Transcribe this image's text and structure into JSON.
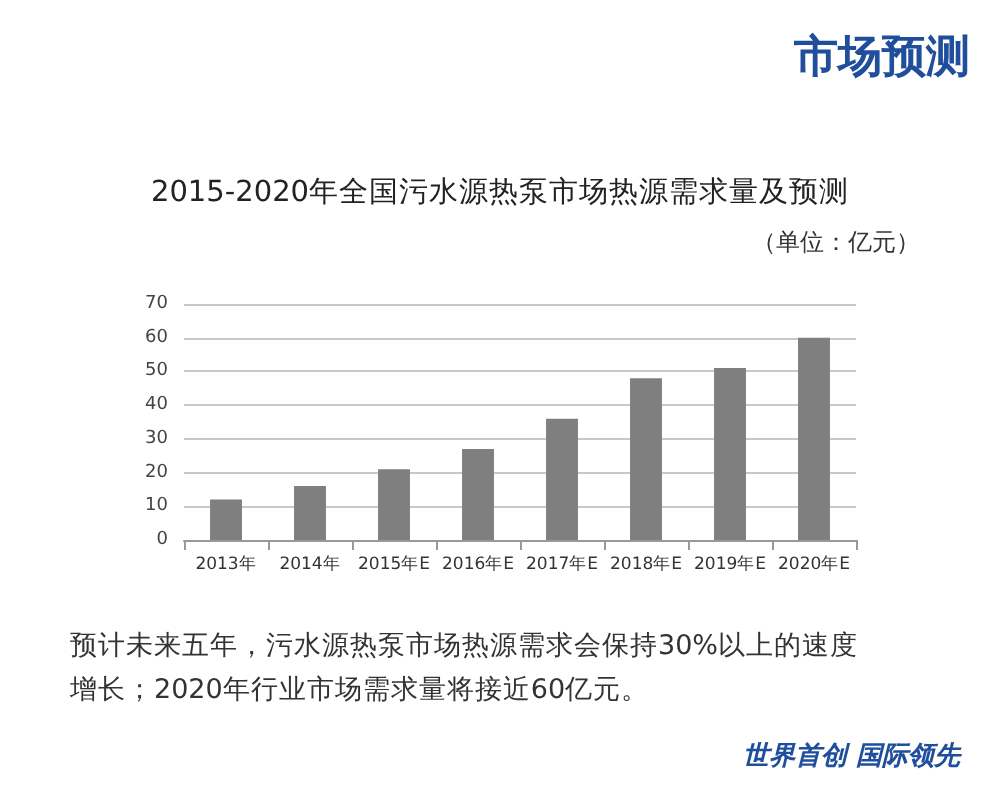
{
  "chart_data": {
    "type": "bar",
    "title": "2015-2020年全国污水源热泵市场热源需求量及预测",
    "categories": [
      "2013年",
      "2014年",
      "2015年E",
      "2016年E",
      "2017年E",
      "2018年E",
      "2019年E",
      "2020年E"
    ],
    "values": [
      12,
      16,
      21,
      27,
      36,
      48,
      51,
      60
    ],
    "color": "#7f7f7f",
    "ylim": [
      0,
      70
    ],
    "yticks": [
      0,
      10,
      20,
      30,
      40,
      50,
      60,
      70
    ],
    "grid": "y",
    "annotations": [
      "市场预测",
      "（单位：亿元）",
      "预计未来五年，污水源热泵市场热源需求会保持30%以上的速度增长；2020年行业市场需求量将接近60亿元。",
      "世界首创 国际领先"
    ]
  }
}
